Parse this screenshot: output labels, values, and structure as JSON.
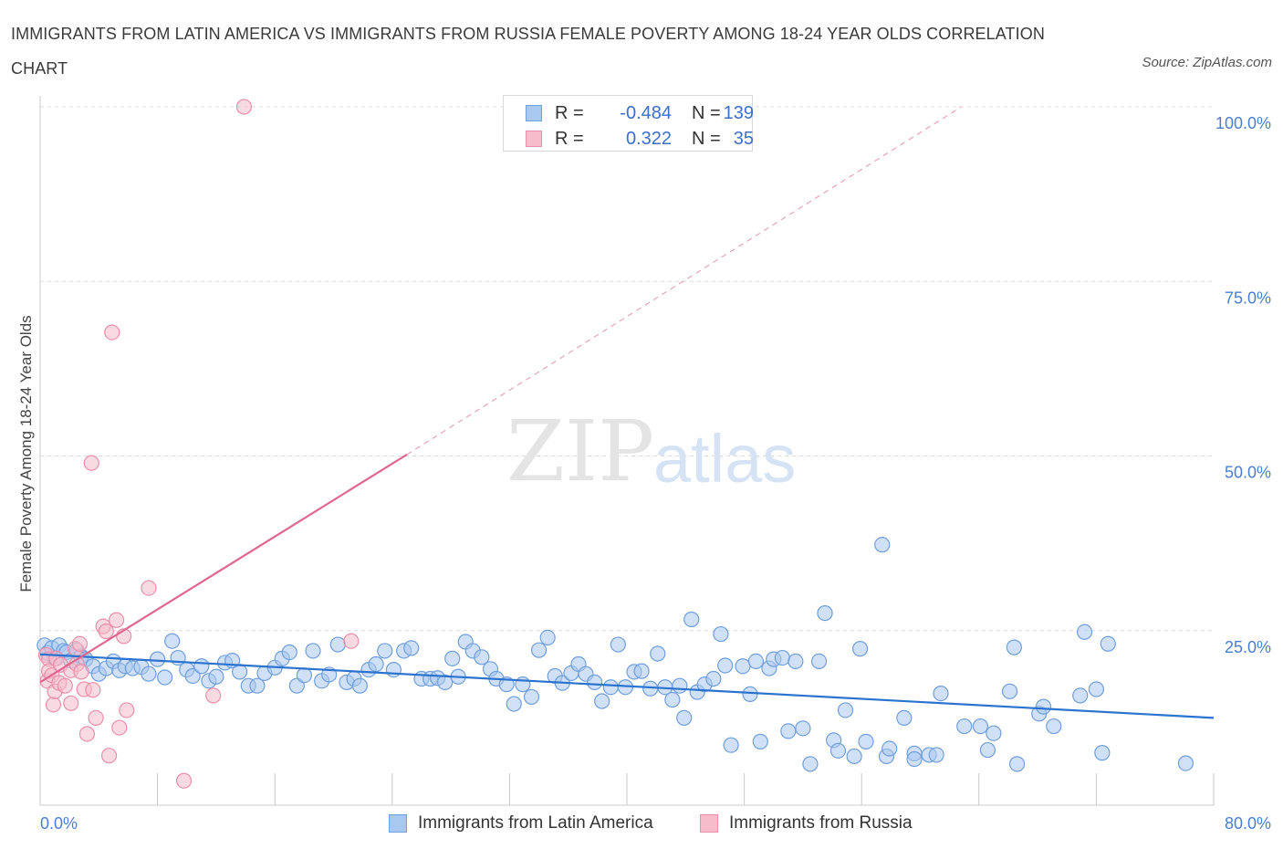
{
  "title": "IMMIGRANTS FROM LATIN AMERICA VS IMMIGRANTS FROM RUSSIA FEMALE POVERTY AMONG 18-24 YEAR OLDS CORRELATION CHART",
  "source": "Source: ZipAtlas.com",
  "watermark": {
    "zip": "ZIP",
    "atlas": "atlas"
  },
  "colors": {
    "blue_fill": "#a9c8f0",
    "blue_stroke": "#6f9fdc",
    "blue_line": "#2b73cf",
    "pink_fill": "#f6bccb",
    "pink_stroke": "#ea8faa",
    "pink_line": "#e06690",
    "tick_label": "#4a7fd0",
    "grid": "#dcdcdc"
  },
  "stats": [
    {
      "r_label": "R =",
      "r_value": "-0.484",
      "n_label": "N =",
      "n_value": "139"
    },
    {
      "r_label": "R =",
      "r_value": "0.322",
      "n_label": "N =",
      "n_value": "35"
    }
  ],
  "legend": [
    "Immigrants from Latin America",
    "Immigrants from Russia"
  ],
  "chart_data": {
    "type": "scatter",
    "title": "IMMIGRANTS FROM LATIN AMERICA VS IMMIGRANTS FROM RUSSIA FEMALE POVERTY AMONG 18-24 YEAR OLDS CORRELATION CHART",
    "xlabel": "",
    "ylabel": "Female Poverty Among 18-24 Year Olds",
    "xlim": [
      0,
      80
    ],
    "ylim": [
      0,
      100
    ],
    "x_tick_labels": [
      "0.0%",
      "80.0%"
    ],
    "y_ticks": [
      25,
      50,
      75,
      100
    ],
    "y_tick_labels": [
      "25.0%",
      "50.0%",
      "75.0%",
      "100.0%"
    ],
    "grid": "horizontal dashed",
    "legend_position": "bottom",
    "series": [
      {
        "name": "Immigrants from Latin America",
        "color": "#a9c8f0",
        "trend": {
          "x": [
            0,
            80
          ],
          "y": [
            21.6,
            12.5
          ],
          "style": "solid"
        },
        "points": [
          [
            0.3,
            22.9
          ],
          [
            0.5,
            21.8
          ],
          [
            0.8,
            22.5
          ],
          [
            1.0,
            21.0
          ],
          [
            1.3,
            22.9
          ],
          [
            1.6,
            22.1
          ],
          [
            1.8,
            21.9
          ],
          [
            2.1,
            20.7
          ],
          [
            2.5,
            22.2
          ],
          [
            2.8,
            21.3
          ],
          [
            3.1,
            20.9
          ],
          [
            3.6,
            19.9
          ],
          [
            4.0,
            18.8
          ],
          [
            4.5,
            19.6
          ],
          [
            5.0,
            20.6
          ],
          [
            5.4,
            19.3
          ],
          [
            5.8,
            19.9
          ],
          [
            6.3,
            19.6
          ],
          [
            6.9,
            19.8
          ],
          [
            7.4,
            18.8
          ],
          [
            8.0,
            20.9
          ],
          [
            8.5,
            18.3
          ],
          [
            9.0,
            23.5
          ],
          [
            9.4,
            21.1
          ],
          [
            10.0,
            19.4
          ],
          [
            10.4,
            18.5
          ],
          [
            11.0,
            19.9
          ],
          [
            11.5,
            17.8
          ],
          [
            12.0,
            18.4
          ],
          [
            12.6,
            20.4
          ],
          [
            13.1,
            20.7
          ],
          [
            13.6,
            19.1
          ],
          [
            14.2,
            17.1
          ],
          [
            14.8,
            17.1
          ],
          [
            15.3,
            18.9
          ],
          [
            16.0,
            19.7
          ],
          [
            16.5,
            21.0
          ],
          [
            17.0,
            21.9
          ],
          [
            17.5,
            17.1
          ],
          [
            18.0,
            18.6
          ],
          [
            18.6,
            22.1
          ],
          [
            19.2,
            17.8
          ],
          [
            19.7,
            18.7
          ],
          [
            20.3,
            23.0
          ],
          [
            20.9,
            17.6
          ],
          [
            21.4,
            18.1
          ],
          [
            21.8,
            17.1
          ],
          [
            22.4,
            19.4
          ],
          [
            22.9,
            20.2
          ],
          [
            23.5,
            22.1
          ],
          [
            24.1,
            19.4
          ],
          [
            24.8,
            22.1
          ],
          [
            25.3,
            22.5
          ],
          [
            26.0,
            18.1
          ],
          [
            26.6,
            18.1
          ],
          [
            27.1,
            18.2
          ],
          [
            27.6,
            17.6
          ],
          [
            28.1,
            21.0
          ],
          [
            28.5,
            18.4
          ],
          [
            29.0,
            23.4
          ],
          [
            29.5,
            22.1
          ],
          [
            30.1,
            21.2
          ],
          [
            30.7,
            19.5
          ],
          [
            31.1,
            18.1
          ],
          [
            31.8,
            17.3
          ],
          [
            32.3,
            14.5
          ],
          [
            32.9,
            17.3
          ],
          [
            33.5,
            15.5
          ],
          [
            34.0,
            22.2
          ],
          [
            34.6,
            24.0
          ],
          [
            35.1,
            18.5
          ],
          [
            35.6,
            17.5
          ],
          [
            36.2,
            18.9
          ],
          [
            36.7,
            20.2
          ],
          [
            37.2,
            18.8
          ],
          [
            37.8,
            17.6
          ],
          [
            38.3,
            14.9
          ],
          [
            38.9,
            16.9
          ],
          [
            39.4,
            23.0
          ],
          [
            39.9,
            16.9
          ],
          [
            40.5,
            19.1
          ],
          [
            41.0,
            19.2
          ],
          [
            41.6,
            16.7
          ],
          [
            42.1,
            21.7
          ],
          [
            42.6,
            16.9
          ],
          [
            43.1,
            15.1
          ],
          [
            43.6,
            17.1
          ],
          [
            43.9,
            12.5
          ],
          [
            44.4,
            26.6
          ],
          [
            44.8,
            16.2
          ],
          [
            45.3,
            17.3
          ],
          [
            45.9,
            18.1
          ],
          [
            46.4,
            24.5
          ],
          [
            46.7,
            20.0
          ],
          [
            47.1,
            8.6
          ],
          [
            47.9,
            19.9
          ],
          [
            48.4,
            15.9
          ],
          [
            48.8,
            20.6
          ],
          [
            49.1,
            9.1
          ],
          [
            49.7,
            19.6
          ],
          [
            50.0,
            20.9
          ],
          [
            50.6,
            21.1
          ],
          [
            51.0,
            10.6
          ],
          [
            51.5,
            20.6
          ],
          [
            52.0,
            11.0
          ],
          [
            52.5,
            5.9
          ],
          [
            53.1,
            20.6
          ],
          [
            53.5,
            27.5
          ],
          [
            54.1,
            9.3
          ],
          [
            54.4,
            7.8
          ],
          [
            54.9,
            13.6
          ],
          [
            55.5,
            7.0
          ],
          [
            55.9,
            22.4
          ],
          [
            56.3,
            9.1
          ],
          [
            57.4,
            37.3
          ],
          [
            57.7,
            7.0
          ],
          [
            57.9,
            8.1
          ],
          [
            58.9,
            12.5
          ],
          [
            59.6,
            7.4
          ],
          [
            59.6,
            6.6
          ],
          [
            60.6,
            7.2
          ],
          [
            61.1,
            7.2
          ],
          [
            61.4,
            16.0
          ],
          [
            63.0,
            11.3
          ],
          [
            64.1,
            11.3
          ],
          [
            64.6,
            7.9
          ],
          [
            65.0,
            10.3
          ],
          [
            66.1,
            16.3
          ],
          [
            66.4,
            22.6
          ],
          [
            66.6,
            5.9
          ],
          [
            68.1,
            13.1
          ],
          [
            68.4,
            14.1
          ],
          [
            69.1,
            11.3
          ],
          [
            70.9,
            15.7
          ],
          [
            71.2,
            24.8
          ],
          [
            72.0,
            16.6
          ],
          [
            72.4,
            7.5
          ],
          [
            72.8,
            23.1
          ],
          [
            78.1,
            6.0
          ]
        ]
      },
      {
        "name": "Immigrants from Russia",
        "color": "#f6bccb",
        "trend": {
          "x": [
            0,
            25
          ],
          "y": [
            17.6,
            50.2
          ],
          "style": "solid",
          "extension": {
            "x": [
              25,
              62.8
            ],
            "y": [
              50.2,
              100
            ],
            "style": "dashed"
          }
        },
        "points": [
          [
            0.4,
            21.5
          ],
          [
            0.5,
            17.8
          ],
          [
            0.6,
            20.9
          ],
          [
            0.6,
            19.2
          ],
          [
            0.8,
            18.6
          ],
          [
            0.9,
            14.4
          ],
          [
            1.0,
            16.3
          ],
          [
            1.1,
            21.0
          ],
          [
            1.3,
            17.5
          ],
          [
            1.4,
            20.1
          ],
          [
            1.7,
            17.1
          ],
          [
            2.1,
            19.3
          ],
          [
            2.1,
            14.6
          ],
          [
            2.4,
            22.4
          ],
          [
            2.5,
            20.2
          ],
          [
            2.7,
            23.1
          ],
          [
            2.8,
            19.1
          ],
          [
            3.0,
            16.6
          ],
          [
            3.2,
            10.2
          ],
          [
            3.5,
            49.0
          ],
          [
            3.6,
            16.5
          ],
          [
            3.8,
            12.5
          ],
          [
            4.3,
            25.6
          ],
          [
            4.5,
            24.9
          ],
          [
            4.7,
            7.1
          ],
          [
            4.9,
            67.7
          ],
          [
            5.2,
            26.5
          ],
          [
            5.4,
            11.1
          ],
          [
            5.7,
            24.2
          ],
          [
            5.9,
            13.6
          ],
          [
            7.4,
            31.1
          ],
          [
            9.8,
            3.5
          ],
          [
            11.8,
            15.7
          ],
          [
            13.9,
            100.0
          ],
          [
            21.2,
            23.5
          ]
        ]
      }
    ]
  }
}
